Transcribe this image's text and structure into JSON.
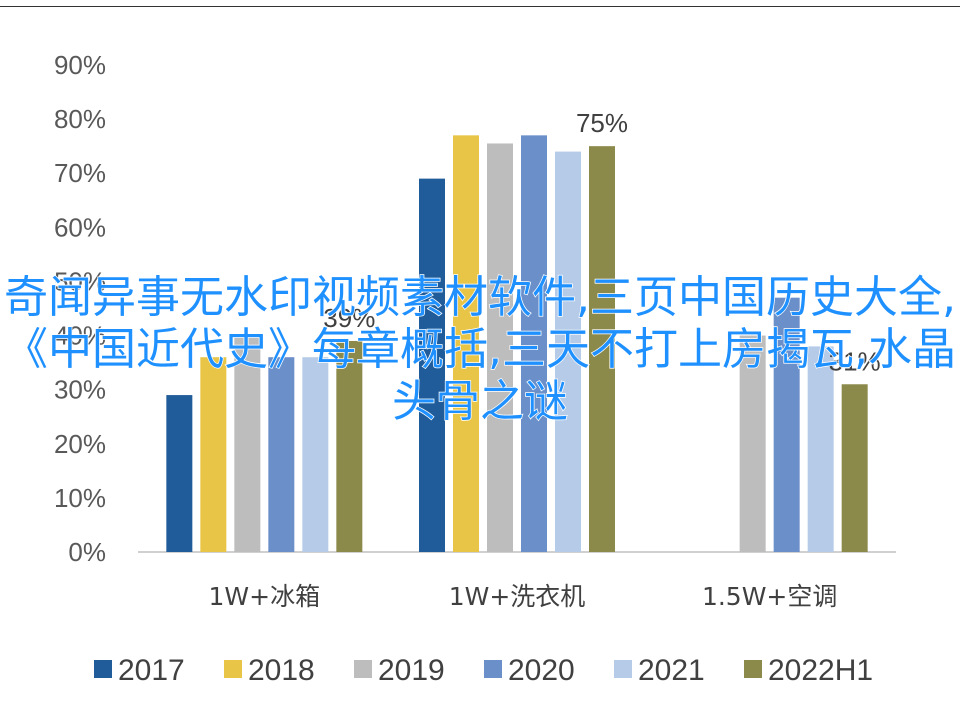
{
  "chart_data": {
    "type": "bar",
    "categories": [
      "1W+冰箱",
      "1W+洗衣机",
      "1.5W+空调"
    ],
    "series": [
      {
        "name": "2017",
        "color": "#1f5c99",
        "values": [
          29,
          69,
          null
        ]
      },
      {
        "name": "2018",
        "color": "#e8c547",
        "values": [
          36,
          77,
          null
        ]
      },
      {
        "name": "2019",
        "color": "#bdbdbd",
        "values": [
          40,
          75.5,
          40
        ]
      },
      {
        "name": "2020",
        "color": "#6a8fc9",
        "values": [
          36,
          77,
          47
        ]
      },
      {
        "name": "2021",
        "color": "#b6cbe8",
        "values": [
          36,
          74,
          38
        ]
      },
      {
        "name": "2022H1",
        "color": "#8b8a4a",
        "values": [
          39,
          75,
          31
        ]
      }
    ],
    "data_labels": [
      {
        "category": 0,
        "series": 5,
        "text": "39%"
      },
      {
        "category": 1,
        "series": 5,
        "text": "75%"
      },
      {
        "category": 2,
        "series": 5,
        "text": "31%"
      }
    ],
    "yticks": [
      "0%",
      "10%",
      "20%",
      "30%",
      "40%",
      "50%",
      "60%",
      "70%",
      "80%",
      "90%"
    ],
    "ylim": [
      0,
      90
    ],
    "legend_position": "bottom",
    "title": "",
    "xlabel": "",
    "ylabel": ""
  },
  "overlay_text": "奇闻异事无水印视频素材软件,三页中国历史大全,《中国近代史》每章概括,三天不打上房揭瓦,水晶头骨之谜"
}
